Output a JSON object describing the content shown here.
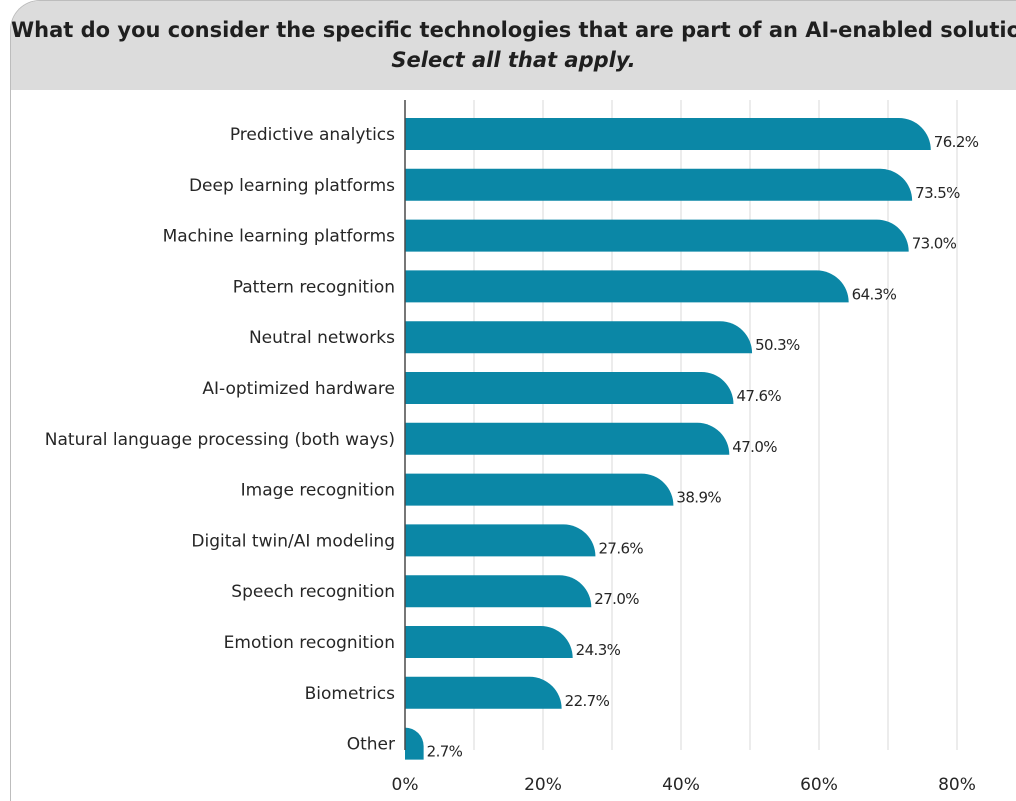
{
  "header": {
    "title": "What do you consider the specific technologies that are part of an AI-enabled solution?",
    "subtitle": "Select all that apply."
  },
  "colors": {
    "bar": "#0b87a6",
    "grid": "#d9d9d9",
    "header_bg": "#dcdcdc"
  },
  "chart_data": {
    "type": "bar",
    "orientation": "horizontal",
    "title": "What do you consider the specific technologies that are part of an AI-enabled solution?",
    "subtitle": "Select all that apply.",
    "categories": [
      "Predictive analytics",
      "Deep learning platforms",
      "Machine learning platforms",
      "Pattern recognition",
      "Neutral networks",
      "AI-optimized hardware",
      "Natural language processing (both ways)",
      "Image recognition",
      "Digital twin/AI modeling",
      "Speech recognition",
      "Emotion recognition",
      "Biometrics",
      "Other"
    ],
    "values": [
      76.2,
      73.5,
      73.0,
      64.3,
      50.3,
      47.6,
      47.0,
      38.9,
      27.6,
      27.0,
      24.3,
      22.7,
      2.7
    ],
    "value_labels": [
      "76.2%",
      "73.5%",
      "73.0%",
      "64.3%",
      "50.3%",
      "47.6%",
      "47.0%",
      "38.9%",
      "27.6%",
      "27.0%",
      "24.3%",
      "22.7%",
      "2.7%"
    ],
    "x_ticks": [
      0,
      20,
      40,
      60,
      80
    ],
    "x_tick_labels": [
      "0%",
      "20%",
      "40%",
      "60%",
      "80%"
    ],
    "xlim": [
      0,
      85
    ],
    "grid": true,
    "legend": "none"
  }
}
